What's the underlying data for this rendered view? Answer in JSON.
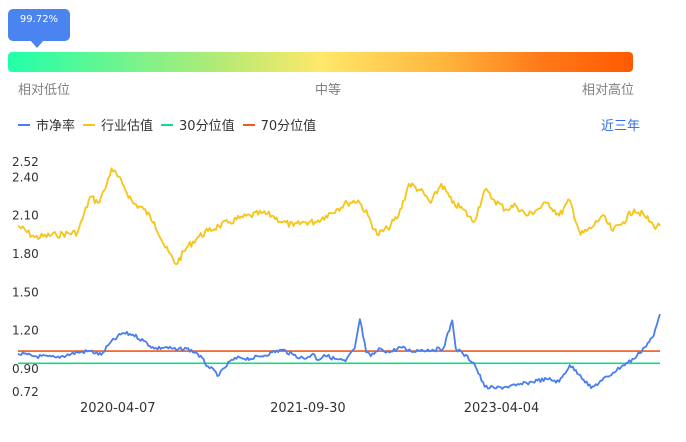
{
  "percentile": {
    "value_label": "99.72%",
    "value": 99.72
  },
  "scale": {
    "low": "相对低位",
    "mid": "中等",
    "high": "相对高位"
  },
  "legend": [
    {
      "label": "市净率",
      "color": "#4a7df0"
    },
    {
      "label": "行业估值",
      "color": "#f5c518"
    },
    {
      "label": "30分位值",
      "color": "#19d68a"
    },
    {
      "label": "70分位值",
      "color": "#f05a1e"
    }
  ],
  "period_label": "近三年",
  "chart_data": {
    "type": "line",
    "ylim": [
      0.72,
      2.52
    ],
    "y_ticks": [
      {
        "value": 2.52,
        "label": "2.52"
      },
      {
        "value": 2.4,
        "label": "2.40"
      },
      {
        "value": 2.1,
        "label": "2.10"
      },
      {
        "value": 1.8,
        "label": "1.80"
      },
      {
        "value": 1.5,
        "label": "1.50"
      },
      {
        "value": 1.2,
        "label": "1.20"
      },
      {
        "value": 0.9,
        "label": "0.90"
      },
      {
        "value": 0.72,
        "label": "0.72"
      }
    ],
    "xlim": [
      "2019-06-28",
      "2024-06-28"
    ],
    "x_ticks": [
      "2020-04-07",
      "2021-09-30",
      "2023-04-04"
    ],
    "series": [
      {
        "name": "市净率",
        "color": "#4a7df0",
        "x": [
          "2019-06-28",
          "2019-08-15",
          "2019-10-15",
          "2019-12-15",
          "2020-01-20",
          "2020-02-20",
          "2020-03-15",
          "2020-04-20",
          "2020-05-20",
          "2020-06-20",
          "2020-07-20",
          "2020-08-20",
          "2020-09-20",
          "2020-10-20",
          "2020-11-20",
          "2020-12-20",
          "2021-01-20",
          "2021-02-20",
          "2021-03-20",
          "2021-04-20",
          "2021-05-20",
          "2021-06-20",
          "2021-07-20",
          "2021-08-20",
          "2021-09-20",
          "2021-10-15",
          "2021-10-28",
          "2021-11-15",
          "2021-12-15",
          "2022-01-15",
          "2022-02-10",
          "2022-02-25",
          "2022-03-15",
          "2022-03-28",
          "2022-04-25",
          "2022-05-20",
          "2022-06-20",
          "2022-07-20",
          "2022-08-20",
          "2022-09-20",
          "2022-10-20",
          "2022-11-15",
          "2022-11-25",
          "2022-12-15",
          "2023-01-15",
          "2023-02-15",
          "2023-03-15",
          "2023-04-15",
          "2023-05-15",
          "2023-06-15",
          "2023-07-15",
          "2023-08-15",
          "2023-09-15",
          "2023-10-15",
          "2023-11-15",
          "2023-12-15",
          "2024-01-15",
          "2024-02-15",
          "2024-03-15",
          "2024-04-15",
          "2024-05-15",
          "2024-06-10",
          "2024-06-28"
        ],
        "y": [
          1.02,
          1.0,
          0.99,
          1.03,
          1.04,
          1.01,
          1.1,
          1.18,
          1.17,
          1.12,
          1.06,
          1.07,
          1.05,
          1.06,
          1.02,
          0.92,
          0.85,
          0.96,
          0.99,
          0.98,
          1.0,
          1.03,
          1.05,
          1.01,
          0.98,
          1.02,
          0.97,
          1.01,
          0.98,
          0.96,
          1.06,
          1.29,
          1.03,
          1.0,
          1.06,
          1.03,
          1.07,
          1.04,
          1.05,
          1.05,
          1.06,
          1.28,
          1.06,
          1.02,
          0.95,
          0.76,
          0.75,
          0.76,
          0.77,
          0.79,
          0.81,
          0.82,
          0.8,
          0.93,
          0.85,
          0.75,
          0.81,
          0.87,
          0.93,
          0.98,
          1.07,
          1.16,
          1.33
        ]
      },
      {
        "name": "行业估值",
        "color": "#f5c518",
        "x": [
          "2019-06-28",
          "2019-08-15",
          "2019-10-15",
          "2019-12-15",
          "2020-01-20",
          "2020-02-10",
          "2020-03-01",
          "2020-03-20",
          "2020-04-20",
          "2020-05-20",
          "2020-06-20",
          "2020-07-20",
          "2020-08-20",
          "2020-09-20",
          "2020-10-20",
          "2020-11-20",
          "2020-12-20",
          "2021-01-20",
          "2021-02-20",
          "2021-03-20",
          "2021-04-20",
          "2021-05-20",
          "2021-06-20",
          "2021-07-20",
          "2021-08-20",
          "2021-09-20",
          "2021-10-20",
          "2021-11-20",
          "2021-12-20",
          "2022-01-20",
          "2022-02-20",
          "2022-03-20",
          "2022-04-15",
          "2022-05-15",
          "2022-06-15",
          "2022-07-15",
          "2022-08-15",
          "2022-09-15",
          "2022-10-15",
          "2022-11-15",
          "2022-12-15",
          "2023-01-15",
          "2023-02-15",
          "2023-03-15",
          "2023-04-15",
          "2023-05-15",
          "2023-06-15",
          "2023-07-15",
          "2023-08-15",
          "2023-09-15",
          "2023-10-15",
          "2023-11-15",
          "2023-12-15",
          "2024-01-15",
          "2024-02-15",
          "2024-03-15",
          "2024-04-15",
          "2024-05-15",
          "2024-06-10",
          "2024-06-28"
        ],
        "y": [
          2.02,
          1.93,
          1.95,
          1.97,
          2.25,
          2.2,
          2.3,
          2.47,
          2.35,
          2.2,
          2.15,
          2.05,
          1.85,
          1.72,
          1.85,
          1.93,
          1.98,
          2.02,
          2.05,
          2.08,
          2.1,
          2.12,
          2.1,
          2.05,
          2.02,
          2.05,
          2.05,
          2.1,
          2.15,
          2.2,
          2.22,
          2.1,
          1.95,
          2.0,
          2.1,
          2.35,
          2.3,
          2.2,
          2.35,
          2.2,
          2.15,
          2.05,
          2.3,
          2.22,
          2.15,
          2.18,
          2.1,
          2.15,
          2.2,
          2.1,
          2.22,
          1.95,
          2.0,
          2.1,
          1.98,
          2.05,
          2.15,
          2.1,
          2.02,
          2.02
        ]
      },
      {
        "name": "30分位值",
        "color": "#19d68a",
        "x": [
          "2019-06-28",
          "2024-06-28"
        ],
        "y": [
          0.945,
          0.945
        ]
      },
      {
        "name": "70分位值",
        "color": "#f05a1e",
        "x": [
          "2019-06-28",
          "2024-06-28"
        ],
        "y": [
          1.04,
          1.04
        ]
      }
    ]
  }
}
